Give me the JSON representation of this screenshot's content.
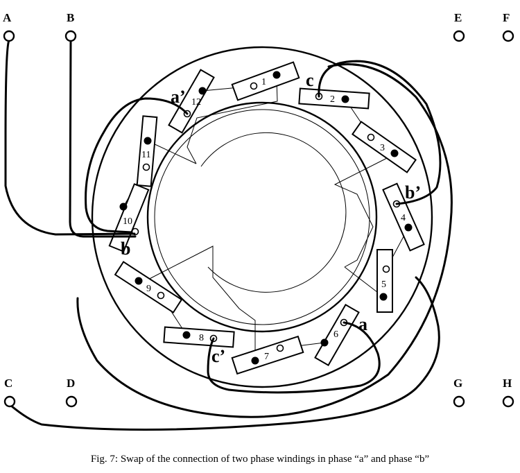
{
  "terminals": [
    {
      "id": "A",
      "label": "A"
    },
    {
      "id": "B",
      "label": "B"
    },
    {
      "id": "E",
      "label": "E"
    },
    {
      "id": "F",
      "label": "F"
    },
    {
      "id": "C",
      "label": "C"
    },
    {
      "id": "D",
      "label": "D"
    },
    {
      "id": "G",
      "label": "G"
    },
    {
      "id": "H",
      "label": "H"
    }
  ],
  "coils": [
    "1",
    "2",
    "3",
    "4",
    "5",
    "6",
    "7",
    "8",
    "9",
    "10",
    "11",
    "12"
  ],
  "phase_labels": {
    "a": "a",
    "a_prime": "a’",
    "b": "b",
    "b_prime": "b’",
    "c": "c",
    "c_prime": "c’"
  },
  "caption": "Fig. 7: Swap of the connection of two phase windings in phase “a” and phase “b”"
}
